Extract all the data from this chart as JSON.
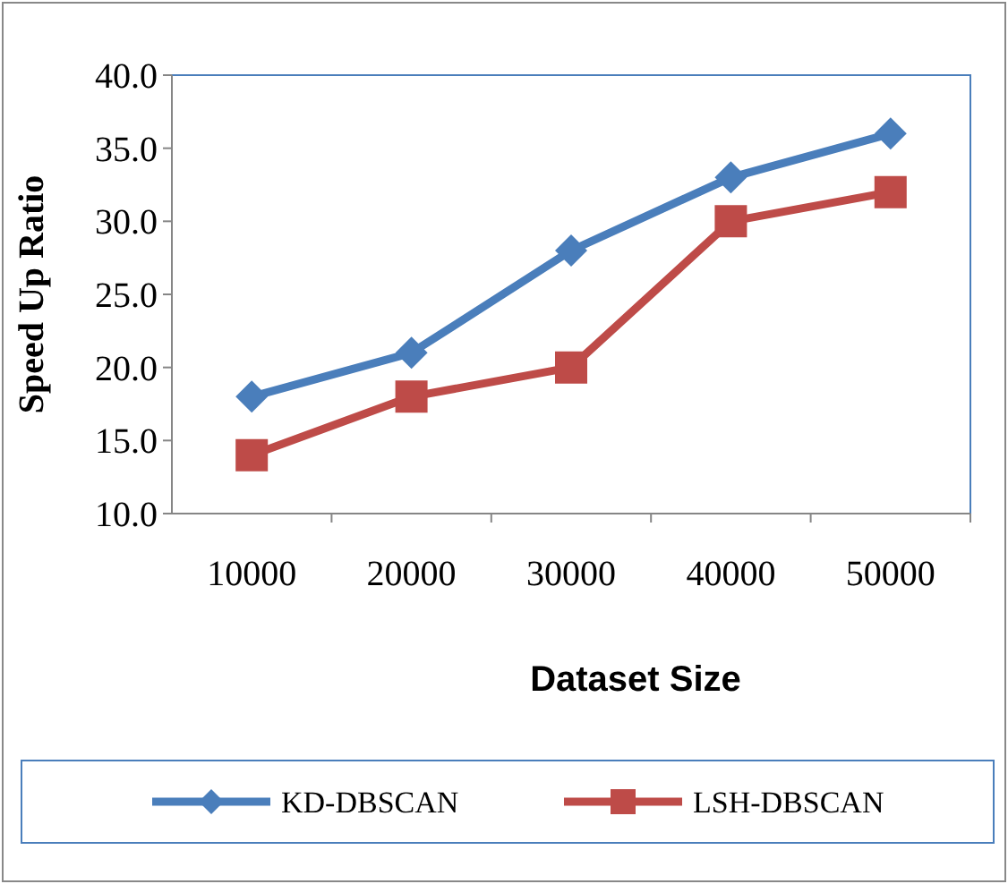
{
  "chart_data": {
    "type": "line",
    "xlabel": "Dataset Size",
    "ylabel": "Speed Up Ratio",
    "categories": [
      "10000",
      "20000",
      "30000",
      "40000",
      "50000"
    ],
    "series": [
      {
        "name": "KD-DBSCAN",
        "color": "#4a7ebb",
        "marker": "diamond",
        "values": [
          18,
          21,
          28,
          33,
          36
        ]
      },
      {
        "name": "LSH-DBSCAN",
        "color": "#be4b48",
        "marker": "square",
        "values": [
          14,
          18,
          20,
          30,
          32
        ]
      }
    ],
    "ylim": [
      10,
      40
    ],
    "yticks": [
      {
        "value": 10,
        "label": "10.0"
      },
      {
        "value": 15,
        "label": "15.0"
      },
      {
        "value": 20,
        "label": "20.0"
      },
      {
        "value": 25,
        "label": "25.0"
      },
      {
        "value": 30,
        "label": "30.0"
      },
      {
        "value": 35,
        "label": "35.0"
      },
      {
        "value": 40,
        "label": "40.0"
      }
    ],
    "grid": false,
    "legend": "bottom",
    "line_style": "solid"
  }
}
